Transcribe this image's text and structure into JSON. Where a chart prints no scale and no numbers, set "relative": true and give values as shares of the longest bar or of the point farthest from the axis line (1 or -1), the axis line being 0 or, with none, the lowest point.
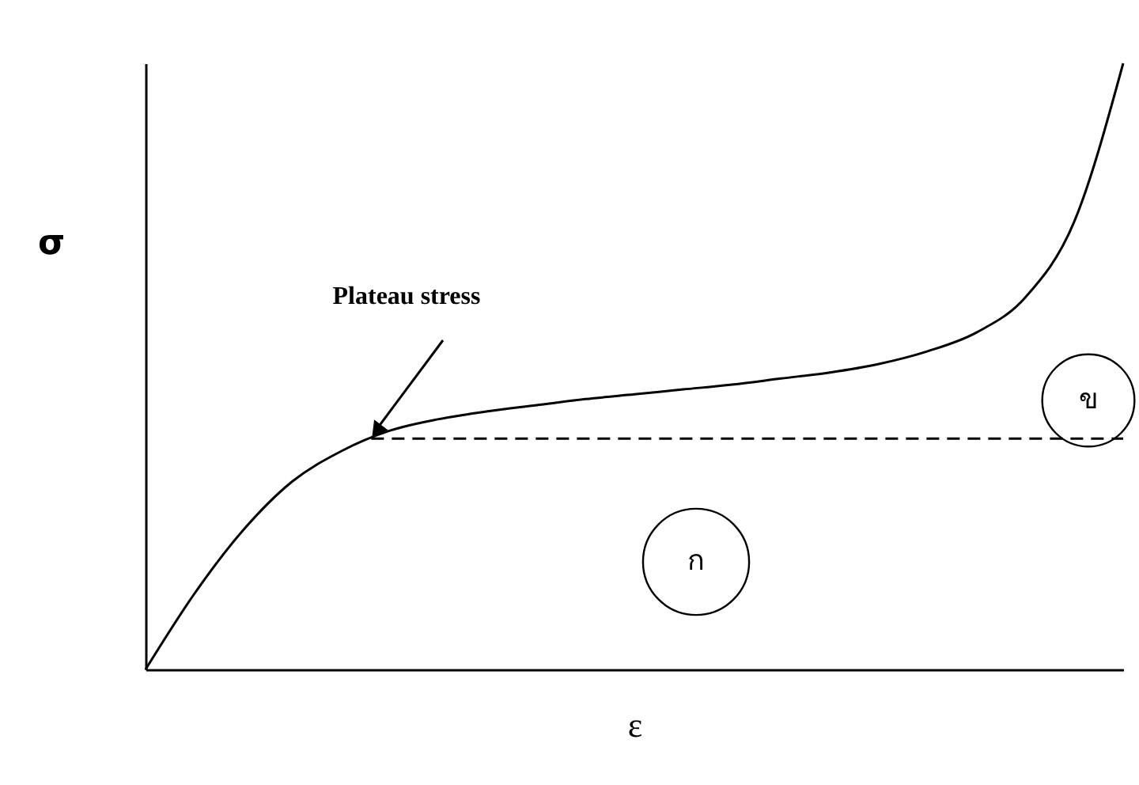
{
  "chart_data": {
    "type": "line",
    "relative": true,
    "xlabel": "ε",
    "ylabel": "σ",
    "categories": [
      null,
      null,
      null,
      null,
      null,
      null,
      null,
      null,
      null,
      null,
      null,
      null,
      null,
      null,
      null,
      null,
      null,
      null,
      null,
      null,
      null
    ],
    "series": [
      {
        "color": "#000000",
        "values": [
          0,
          0.125,
          0.23,
          0.31,
          0.36,
          0.394,
          0.413,
          0.426,
          0.436,
          0.446,
          0.454,
          0.462,
          0.47,
          0.48,
          0.49,
          0.504,
          0.525,
          0.556,
          0.614,
          0.739,
          1.0
        ]
      }
    ],
    "ref_lines": [
      {
        "axis": "y",
        "value": 0.381,
        "color": "#000000",
        "line_style": "dashed"
      }
    ],
    "annotations": [
      "Plateau stress",
      "ก",
      "ข"
    ],
    "grid": false,
    "marker": "none",
    "line_style": "solid"
  }
}
